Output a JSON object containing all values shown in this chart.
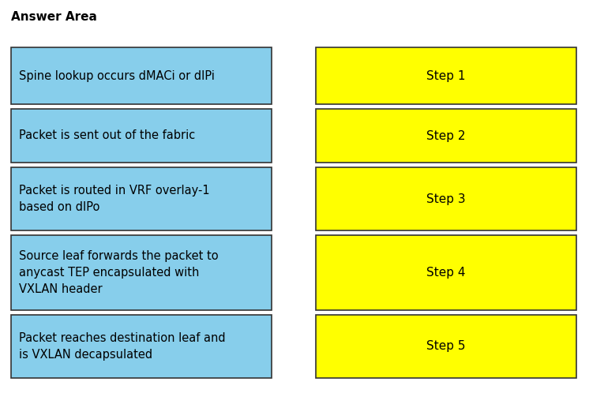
{
  "title": "Answer Area",
  "title_fontsize": 11,
  "title_fontweight": "bold",
  "left_boxes": [
    "Spine lookup occurs dMACi or dIPi",
    "Packet is sent out of the fabric",
    "Packet is routed in VRF overlay-1\nbased on dIPo",
    "Source leaf forwards the packet to\nanycast TEP encapsulated with\nVXLAN header",
    "Packet reaches destination leaf and\nis VXLAN decapsulated"
  ],
  "right_boxes": [
    "Step 1",
    "Step 2",
    "Step 3",
    "Step 4",
    "Step 5"
  ],
  "left_color": "#87CEEB",
  "right_color": "#FFFF00",
  "border_color": "#333333",
  "text_color": "#000000",
  "background_color": "#FFFFFF",
  "font_size": 10.5,
  "step_font_size": 11,
  "figwidth": 7.46,
  "figheight": 4.98,
  "dpi": 100
}
